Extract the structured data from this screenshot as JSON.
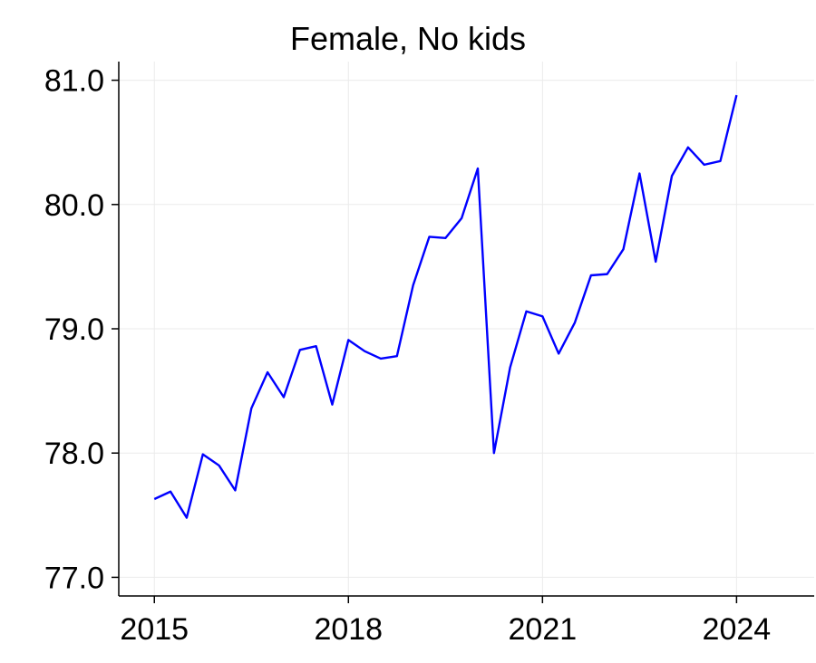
{
  "chart_data": {
    "type": "line",
    "title": "Female, No kids",
    "xlabel": "",
    "ylabel": "",
    "xlim": [
      2014.45,
      2025.2
    ],
    "ylim": [
      76.85,
      81.15
    ],
    "xticks": [
      2015,
      2018,
      2021,
      2024
    ],
    "xtick_labels": [
      "2015",
      "2018",
      "2021",
      "2024"
    ],
    "yticks": [
      77.0,
      78.0,
      79.0,
      80.0,
      81.0
    ],
    "ytick_labels": [
      "77.0",
      "78.0",
      "79.0",
      "80.0",
      "81.0"
    ],
    "grid": true,
    "legend": false,
    "line_color": "#0000ff",
    "series": [
      {
        "x": [
          2015.0,
          2015.25,
          2015.5,
          2015.75,
          2016.0,
          2016.25,
          2016.5,
          2016.75,
          2017.0,
          2017.25,
          2017.5,
          2017.75,
          2018.0,
          2018.25,
          2018.5,
          2018.75,
          2019.0,
          2019.25,
          2019.5,
          2019.75,
          2020.0,
          2020.25,
          2020.5,
          2020.75,
          2021.0,
          2021.25,
          2021.5,
          2021.75,
          2022.0,
          2022.25,
          2022.5,
          2022.75,
          2023.0,
          2023.25,
          2023.5,
          2023.75,
          2024.0
        ],
        "y": [
          77.63,
          77.69,
          77.48,
          77.99,
          77.9,
          77.7,
          78.36,
          78.65,
          78.45,
          78.83,
          78.86,
          78.39,
          78.91,
          78.82,
          78.76,
          78.78,
          79.35,
          79.74,
          79.73,
          79.89,
          80.29,
          78.0,
          78.69,
          79.14,
          79.1,
          78.8,
          79.05,
          79.43,
          79.44,
          79.64,
          80.25,
          79.54,
          80.23,
          80.46,
          80.32,
          80.35,
          80.88
        ]
      }
    ]
  }
}
